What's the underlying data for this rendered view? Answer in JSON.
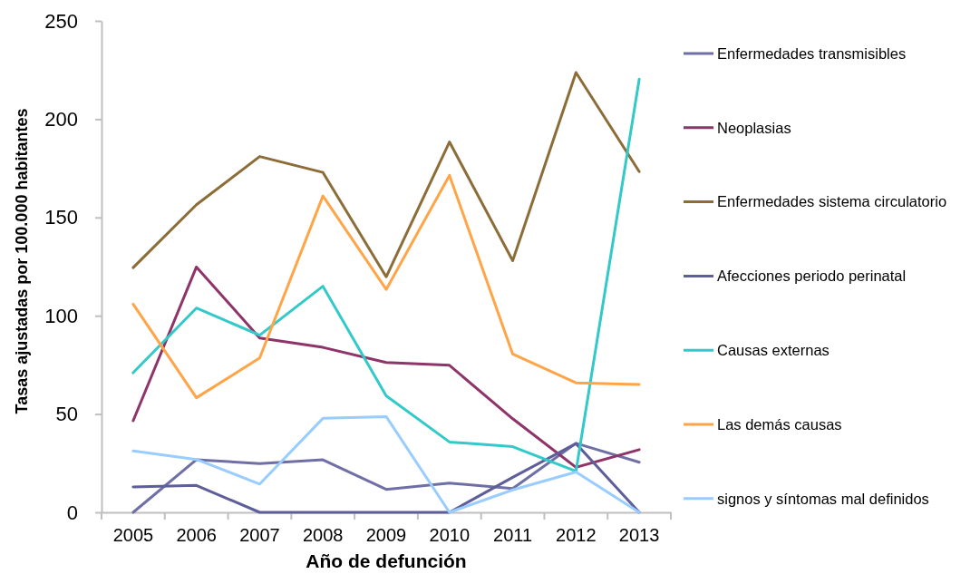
{
  "chart_data": {
    "type": "line",
    "xlabel": "Año de defunción",
    "ylabel": "Tasas ajustadas por 100.000 habitantes",
    "categories": [
      "2005",
      "2006",
      "2007",
      "2008",
      "2009",
      "2010",
      "2011",
      "2012",
      "2013"
    ],
    "ylim": [
      0,
      250
    ],
    "yticks": [
      0,
      50,
      100,
      150,
      200,
      250
    ],
    "grid": false,
    "legend": "right",
    "marker": "none",
    "line_style": "solid",
    "series": [
      {
        "name": "Enfermedades transmisibles",
        "color": "#6f6fa8",
        "values": [
          0,
          26.8,
          24.8,
          26.7,
          11.7,
          14.9,
          12.1,
          35.1,
          25.5
        ]
      },
      {
        "name": "Neoplasias",
        "color": "#8e3468",
        "values": [
          46.6,
          124.8,
          88.7,
          83.9,
          76.2,
          74.8,
          47.6,
          22.9,
          31.9
        ]
      },
      {
        "name": "Enfermedades sistema circulatorio",
        "color": "#8c6d38",
        "values": [
          124.5,
          156.5,
          181.0,
          172.9,
          119.8,
          188.4,
          128.0,
          223.7,
          173.3
        ]
      },
      {
        "name": "Afecciones periodo perinatal",
        "color": "#5e5e9a",
        "values": [
          12.9,
          13.7,
          0,
          0,
          0,
          0,
          17.8,
          35.0,
          0
        ]
      },
      {
        "name": "Causas externas",
        "color": "#33c9c9",
        "values": [
          71.0,
          103.9,
          90.1,
          115.0,
          59.3,
          35.8,
          33.4,
          20.9,
          220.4
        ]
      },
      {
        "name": "Las demás causas",
        "color": "#ffa547",
        "values": [
          105.9,
          58.3,
          78.5,
          160.9,
          113.4,
          171.4,
          80.5,
          65.9,
          65.0
        ]
      },
      {
        "name": "signos y síntomas mal definidos",
        "color": "#99ccff",
        "values": [
          31.2,
          26.9,
          14.4,
          47.8,
          48.7,
          0,
          11.4,
          20.5,
          0
        ]
      }
    ]
  }
}
